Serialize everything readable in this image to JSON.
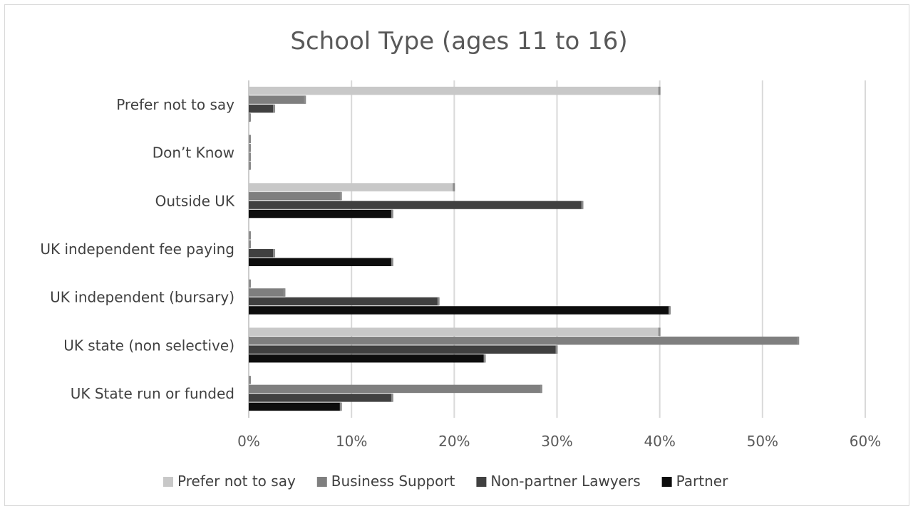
{
  "chart_data": {
    "type": "bar",
    "orientation": "horizontal",
    "title": "School Type (ages 11 to 16)",
    "xlabel": "",
    "ylabel": "",
    "categories": [
      "UK State run or funded",
      "UK state (non selective)",
      "UK independent (bursary)",
      "UK independent fee paying",
      "Outside UK",
      "Don’t Know",
      "Prefer not to say"
    ],
    "series": [
      {
        "name": "Prefer not to say",
        "color": "#c8c8c8",
        "values": [
          0,
          40,
          0,
          0,
          20,
          0,
          40
        ]
      },
      {
        "name": "Business Support",
        "color": "#7f7f7f",
        "values": [
          28.5,
          53.5,
          3.5,
          0,
          9,
          0,
          5.5
        ]
      },
      {
        "name": "Non-partner Lawyers",
        "color": "#404040",
        "values": [
          14,
          30,
          18.5,
          2.5,
          32.5,
          0,
          2.5
        ]
      },
      {
        "name": "Partner",
        "color": "#0d0d0d",
        "values": [
          9,
          23,
          41,
          14,
          14,
          0,
          0
        ]
      }
    ],
    "xlim": [
      0,
      60
    ],
    "x_ticks": [
      "0%",
      "10%",
      "20%",
      "30%",
      "40%",
      "50%",
      "60%"
    ],
    "grid": true,
    "legend_position": "bottom"
  }
}
